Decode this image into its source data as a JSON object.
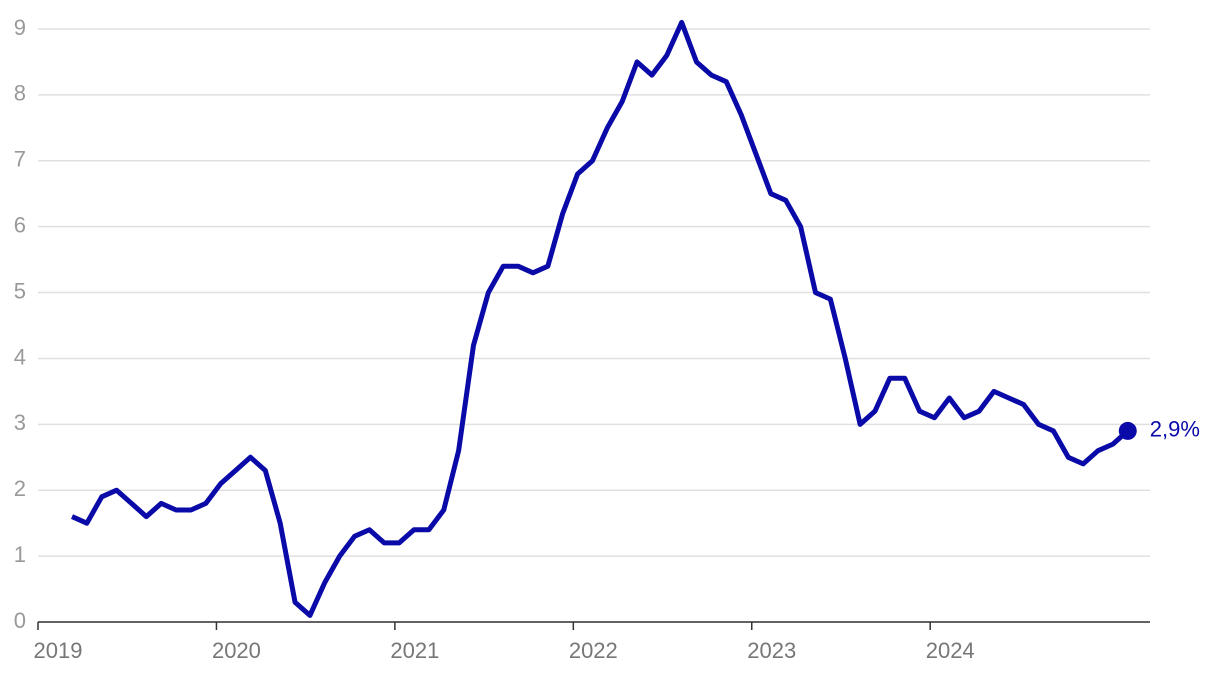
{
  "chart_data": {
    "type": "line",
    "categories": [
      "2019",
      null,
      null,
      null,
      null,
      null,
      null,
      null,
      null,
      null,
      null,
      null,
      "2020",
      null,
      null,
      null,
      null,
      null,
      null,
      null,
      null,
      null,
      null,
      null,
      "2021",
      null,
      null,
      null,
      null,
      null,
      null,
      null,
      null,
      null,
      null,
      null,
      "2022",
      null,
      null,
      null,
      null,
      null,
      null,
      null,
      null,
      null,
      null,
      null,
      "2023",
      null,
      null,
      null,
      null,
      null,
      null,
      null,
      null,
      null,
      null,
      null,
      "2024",
      null,
      null,
      null,
      null,
      null,
      null,
      null,
      null,
      null,
      null,
      null
    ],
    "series": [
      {
        "color": "#0a0aa8",
        "values": [
          1.6,
          1.5,
          1.9,
          2.0,
          1.8,
          1.6,
          1.8,
          1.7,
          1.7,
          1.8,
          2.1,
          2.3,
          2.5,
          2.3,
          1.5,
          0.3,
          0.1,
          0.6,
          1.0,
          1.3,
          1.4,
          1.2,
          1.2,
          1.4,
          1.4,
          1.7,
          2.6,
          4.2,
          5.0,
          5.4,
          5.4,
          5.3,
          5.4,
          6.2,
          6.8,
          7.0,
          7.5,
          7.9,
          8.5,
          8.3,
          8.6,
          9.1,
          8.5,
          8.3,
          8.2,
          7.7,
          7.1,
          6.5,
          6.4,
          6.0,
          5.0,
          4.9,
          4.0,
          3.0,
          3.2,
          3.7,
          3.7,
          3.2,
          3.1,
          3.4,
          3.1,
          3.2,
          3.5,
          3.4,
          3.3,
          3.0,
          2.9,
          2.5,
          2.4,
          2.6,
          2.7,
          2.9
        ],
        "value_labels": [
          null,
          null,
          null,
          null,
          null,
          null,
          null,
          null,
          null,
          null,
          null,
          null,
          null,
          null,
          null,
          null,
          null,
          null,
          null,
          null,
          null,
          null,
          null,
          null,
          null,
          null,
          null,
          null,
          null,
          null,
          null,
          null,
          null,
          null,
          null,
          null,
          null,
          null,
          null,
          null,
          null,
          null,
          null,
          null,
          null,
          null,
          null,
          null,
          null,
          null,
          null,
          null,
          null,
          null,
          null,
          null,
          null,
          null,
          null,
          null,
          null,
          null,
          null,
          null,
          null,
          null,
          null,
          null,
          null,
          null,
          null,
          "2,9%"
        ]
      }
    ],
    "ylim": [
      0,
      9
    ],
    "yticks": [
      0,
      1,
      2,
      3,
      4,
      5,
      6,
      7,
      8,
      9
    ],
    "grid": true
  }
}
